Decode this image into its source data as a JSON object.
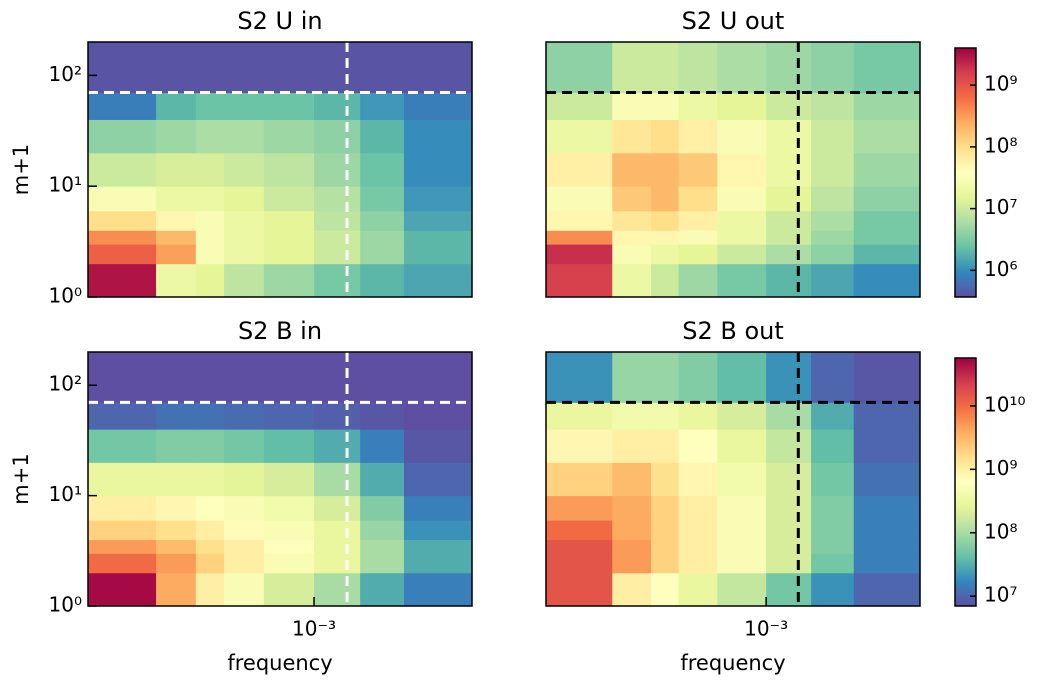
{
  "chart_data": [
    {
      "type": "heatmap",
      "title": "S2 U in",
      "ylabel": "m+1",
      "log_x": true,
      "log_y": true,
      "log_color": true,
      "x_bins": [
        0.0001,
        0.0002,
        0.0003,
        0.0004,
        0.0006,
        0.001,
        0.0016,
        0.0025,
        0.005
      ],
      "y_bins": [
        1,
        2,
        3,
        4,
        6,
        10,
        20,
        40,
        70,
        200
      ],
      "xlim": [
        0.0001,
        0.005
      ],
      "ylim": [
        1,
        200
      ],
      "clim": [
        370000.0,
        4000000000.0
      ],
      "yticks": [
        {
          "value": 1,
          "label": "10⁰"
        },
        {
          "value": 10,
          "label": "10¹"
        },
        {
          "value": 100,
          "label": "10²"
        }
      ],
      "hline": 70,
      "vline": 0.0014,
      "line_color": "#ffffff",
      "values": [
        [
          3000000000.0,
          20000000.0,
          15000000.0,
          8000000.0,
          5000000.0,
          3000000.0,
          2000000.0,
          1500000.0
        ],
        [
          800000000.0,
          300000000.0,
          30000000.0,
          20000000.0,
          15000000.0,
          10000000.0,
          5000000.0,
          2000000.0
        ],
        [
          400000000.0,
          200000000.0,
          30000000.0,
          20000000.0,
          15000000.0,
          10000000.0,
          5000000.0,
          2000000.0
        ],
        [
          100000000.0,
          50000000.0,
          30000000.0,
          20000000.0,
          15000000.0,
          8000000.0,
          4000000.0,
          1500000.0
        ],
        [
          30000000.0,
          20000000.0,
          20000000.0,
          15000000.0,
          10000000.0,
          7000000.0,
          3000000.0,
          1200000.0
        ],
        [
          10000000.0,
          12000000.0,
          12000000.0,
          10000000.0,
          8000000.0,
          5000000.0,
          2500000.0,
          1000000.0
        ],
        [
          4000000.0,
          5000000.0,
          6000000.0,
          6000000.0,
          5000000.0,
          4000000.0,
          2000000.0,
          1000000.0
        ],
        [
          800000.0,
          2000000.0,
          2500000.0,
          2500000.0,
          2500000.0,
          2000000.0,
          1200000.0,
          800000.0
        ],
        [
          400000.0,
          400000.0,
          400000.0,
          400000.0,
          400000.0,
          400000.0,
          400000.0,
          400000.0
        ]
      ]
    },
    {
      "type": "heatmap",
      "title": "S2 U out",
      "log_x": true,
      "log_y": true,
      "log_color": true,
      "x_bins": [
        0.0001,
        0.0002,
        0.0003,
        0.0004,
        0.0006,
        0.001,
        0.0016,
        0.0025,
        0.005
      ],
      "y_bins": [
        1,
        2,
        3,
        4,
        6,
        10,
        20,
        40,
        70,
        200
      ],
      "xlim": [
        0.0001,
        0.005
      ],
      "ylim": [
        1,
        200
      ],
      "clim": [
        370000.0,
        4000000000.0
      ],
      "hline": 70,
      "vline": 0.0014,
      "line_color": "#000000",
      "colorbar": {
        "ticks": [
          {
            "value": 1000000.0,
            "label": "10⁶"
          },
          {
            "value": 10000000.0,
            "label": "10⁷"
          },
          {
            "value": 100000000.0,
            "label": "10⁸"
          },
          {
            "value": 1000000000.0,
            "label": "10⁹"
          }
        ]
      },
      "values": [
        [
          1500000000.0,
          20000000.0,
          10000000.0,
          5000000.0,
          3000000.0,
          2000000.0,
          1500000.0,
          1000000.0
        ],
        [
          2000000000.0,
          30000000.0,
          20000000.0,
          15000000.0,
          10000000.0,
          6000000.0,
          4000000.0,
          2000000.0
        ],
        [
          400000000.0,
          50000000.0,
          50000000.0,
          30000000.0,
          20000000.0,
          10000000.0,
          5000000.0,
          3000000.0
        ],
        [
          50000000.0,
          80000000.0,
          100000000.0,
          60000000.0,
          20000000.0,
          10000000.0,
          6000000.0,
          3000000.0
        ],
        [
          30000000.0,
          150000000.0,
          200000000.0,
          100000000.0,
          30000000.0,
          15000000.0,
          8000000.0,
          4000000.0
        ],
        [
          60000000.0,
          200000000.0,
          200000000.0,
          150000000.0,
          50000000.0,
          20000000.0,
          10000000.0,
          5000000.0
        ],
        [
          20000000.0,
          80000000.0,
          100000000.0,
          60000000.0,
          30000000.0,
          20000000.0,
          10000000.0,
          6000000.0
        ],
        [
          10000000.0,
          30000000.0,
          30000000.0,
          20000000.0,
          15000000.0,
          10000000.0,
          8000000.0,
          5000000.0
        ],
        [
          4000000.0,
          10000000.0,
          10000000.0,
          8000000.0,
          6000000.0,
          5000000.0,
          4000000.0,
          3000000.0
        ]
      ]
    },
    {
      "type": "heatmap",
      "title": "S2 B in",
      "ylabel": "m+1",
      "xlabel": "frequency",
      "log_x": true,
      "log_y": true,
      "log_color": true,
      "x_bins": [
        0.0001,
        0.0002,
        0.0003,
        0.0004,
        0.0006,
        0.001,
        0.0016,
        0.0025,
        0.005
      ],
      "y_bins": [
        1,
        2,
        3,
        4,
        6,
        10,
        20,
        40,
        70,
        200
      ],
      "xlim": [
        0.0001,
        0.005
      ],
      "ylim": [
        1,
        200
      ],
      "clim": [
        7000000.0,
        57000000000.0
      ],
      "xticks": [
        {
          "value": 0.001,
          "label": "10⁻³"
        }
      ],
      "yticks": [
        {
          "value": 1,
          "label": "10⁰"
        },
        {
          "value": 10,
          "label": "10¹"
        },
        {
          "value": 100,
          "label": "10²"
        }
      ],
      "hline": 70,
      "vline": 0.0014,
      "line_color": "#ffffff",
      "values": [
        [
          50000000000.0,
          4000000000.0,
          1000000000.0,
          500000000.0,
          200000000.0,
          100000000.0,
          30000000.0,
          15000000.0
        ],
        [
          10000000000.0,
          5000000000.0,
          2000000000.0,
          1000000000.0,
          500000000.0,
          300000000.0,
          100000000.0,
          30000000.0
        ],
        [
          5000000000.0,
          3000000000.0,
          1500000000.0,
          1000000000.0,
          600000000.0,
          300000000.0,
          100000000.0,
          30000000.0
        ],
        [
          2000000000.0,
          1500000000.0,
          1000000000.0,
          700000000.0,
          500000000.0,
          300000000.0,
          80000000.0,
          20000000.0
        ],
        [
          1000000000.0,
          800000000.0,
          600000000.0,
          500000000.0,
          400000000.0,
          200000000.0,
          60000000.0,
          15000000.0
        ],
        [
          300000000.0,
          300000000.0,
          300000000.0,
          250000000.0,
          200000000.0,
          100000000.0,
          30000000.0,
          10000000.0
        ],
        [
          50000000.0,
          60000000.0,
          60000000.0,
          50000000.0,
          40000000.0,
          30000000.0,
          15000000.0,
          8000000.0
        ],
        [
          10000000.0,
          12000000.0,
          12000000.0,
          11000000.0,
          10000000.0,
          9000000.0,
          8000000.0,
          7000000.0
        ],
        [
          7000000.0,
          7000000.0,
          7000000.0,
          7000000.0,
          7000000.0,
          7000000.0,
          7000000.0,
          7000000.0
        ]
      ]
    },
    {
      "type": "heatmap",
      "title": "S2 B out",
      "xlabel": "frequency",
      "log_x": true,
      "log_y": true,
      "log_color": true,
      "x_bins": [
        0.0001,
        0.0002,
        0.0003,
        0.0004,
        0.0006,
        0.001,
        0.0016,
        0.0025,
        0.005
      ],
      "y_bins": [
        1,
        2,
        3,
        4,
        6,
        10,
        20,
        40,
        70,
        200
      ],
      "xlim": [
        0.0001,
        0.005
      ],
      "ylim": [
        1,
        200
      ],
      "clim": [
        7000000.0,
        57000000000.0
      ],
      "xticks": [
        {
          "value": 0.001,
          "label": "10⁻³"
        }
      ],
      "hline": 70,
      "vline": 0.0014,
      "line_color": "#000000",
      "colorbar": {
        "ticks": [
          {
            "value": 10000000.0,
            "label": "10⁷"
          },
          {
            "value": 100000000.0,
            "label": "10⁸"
          },
          {
            "value": 1000000000.0,
            "label": "10⁹"
          },
          {
            "value": 10000000000.0,
            "label": "10¹⁰"
          }
        ]
      },
      "values": [
        [
          15000000000.0,
          1000000000.0,
          600000000.0,
          300000000.0,
          150000000.0,
          50000000.0,
          20000000.0,
          10000000.0
        ],
        [
          15000000000.0,
          5000000000.0,
          2000000000.0,
          1000000000.0,
          500000000.0,
          200000000.0,
          50000000.0,
          15000000.0
        ],
        [
          15000000000.0,
          5000000000.0,
          2000000000.0,
          1000000000.0,
          500000000.0,
          200000000.0,
          60000000.0,
          15000000.0
        ],
        [
          10000000000.0,
          4000000000.0,
          2000000000.0,
          1000000000.0,
          500000000.0,
          200000000.0,
          60000000.0,
          15000000.0
        ],
        [
          5000000000.0,
          4000000000.0,
          2000000000.0,
          1000000000.0,
          500000000.0,
          200000000.0,
          60000000.0,
          15000000.0
        ],
        [
          2000000000.0,
          3000000000.0,
          1500000000.0,
          800000000.0,
          400000000.0,
          200000000.0,
          50000000.0,
          12000000.0
        ],
        [
          800000000.0,
          1000000000.0,
          1000000000.0,
          600000000.0,
          300000000.0,
          150000000.0,
          40000000.0,
          10000000.0
        ],
        [
          300000000.0,
          400000000.0,
          400000000.0,
          300000000.0,
          200000000.0,
          100000000.0,
          30000000.0,
          10000000.0
        ],
        [
          20000000.0,
          80000000.0,
          80000000.0,
          60000000.0,
          40000000.0,
          20000000.0,
          10000000.0,
          8000000.0
        ]
      ]
    }
  ],
  "colormap": [
    "#5e4fa2",
    "#3288bd",
    "#66c2a5",
    "#abdda4",
    "#e6f598",
    "#ffffbf",
    "#fee08b",
    "#fdae61",
    "#f46d43",
    "#d53e4f",
    "#9e0142"
  ]
}
